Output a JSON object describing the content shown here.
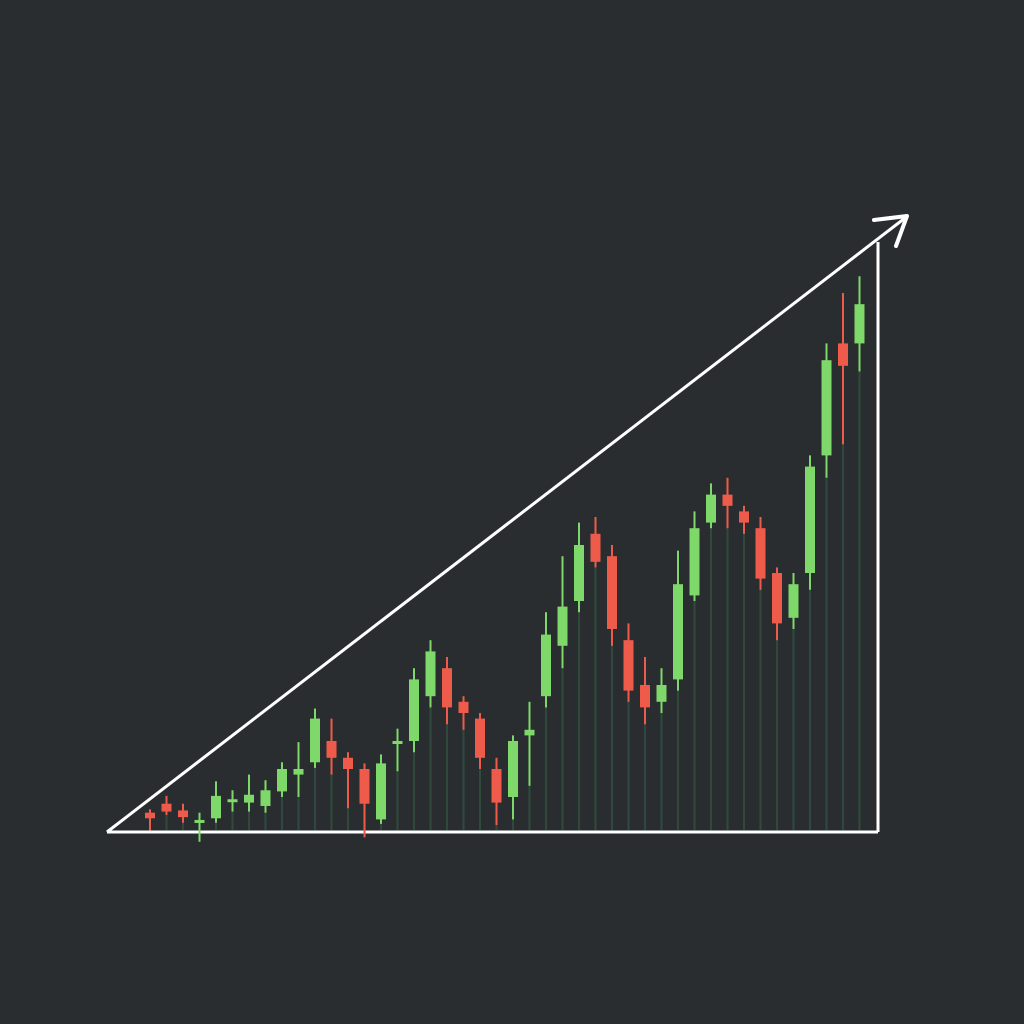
{
  "chart_data": {
    "type": "candlestick",
    "title": "",
    "xlabel": "",
    "ylabel": "",
    "axes_visible": false,
    "grid": false,
    "legend": "none",
    "colors": {
      "background": "#2a2d2f",
      "up": "#7fd86a",
      "down": "#ee5b4b",
      "shadow": "#2f4a3c",
      "frame": "#ffffff"
    },
    "overlay": {
      "shape": "right-triangle-with-arrow",
      "description_icon": "up-trend-arrow-icon"
    },
    "ylim": [
      0,
      100
    ],
    "candles": [
      {
        "i": 1,
        "open": 2.2,
        "close": 1.2,
        "high": 2.8,
        "low": -1.0,
        "dir": "down"
      },
      {
        "i": 2,
        "open": 3.8,
        "close": 2.4,
        "high": 5.2,
        "low": 1.8,
        "dir": "down"
      },
      {
        "i": 3,
        "open": 2.6,
        "close": 1.4,
        "high": 3.8,
        "low": 0.4,
        "dir": "down"
      },
      {
        "i": 4,
        "open": 0.4,
        "close": 0.9,
        "high": 2.2,
        "low": -3.0,
        "dir": "up"
      },
      {
        "i": 5,
        "open": 1.2,
        "close": 5.2,
        "high": 7.8,
        "low": 0.4,
        "dir": "up"
      },
      {
        "i": 6,
        "open": 4.2,
        "close": 4.6,
        "high": 6.2,
        "low": 2.4,
        "dir": "up"
      },
      {
        "i": 7,
        "open": 4.0,
        "close": 5.4,
        "high": 9.0,
        "low": 2.4,
        "dir": "up"
      },
      {
        "i": 8,
        "open": 3.4,
        "close": 6.2,
        "high": 8.0,
        "low": 2.2,
        "dir": "up"
      },
      {
        "i": 9,
        "open": 6.0,
        "close": 10.0,
        "high": 11.2,
        "low": 5.0,
        "dir": "up"
      },
      {
        "i": 10,
        "open": 9.0,
        "close": 10.0,
        "high": 14.8,
        "low": 5.0,
        "dir": "up"
      },
      {
        "i": 11,
        "open": 11.2,
        "close": 19.0,
        "high": 20.8,
        "low": 10.2,
        "dir": "up"
      },
      {
        "i": 12,
        "open": 15.0,
        "close": 12.0,
        "high": 19.0,
        "low": 9.0,
        "dir": "down"
      },
      {
        "i": 13,
        "open": 12.0,
        "close": 10.0,
        "high": 13.0,
        "low": 3.0,
        "dir": "down"
      },
      {
        "i": 14,
        "open": 10.0,
        "close": 3.8,
        "high": 11.0,
        "low": -2.2,
        "dir": "down"
      },
      {
        "i": 15,
        "open": 1.0,
        "close": 11.0,
        "high": 12.6,
        "low": 0.2,
        "dir": "up"
      },
      {
        "i": 16,
        "open": 15.0,
        "close": 15.0,
        "high": 17.2,
        "low": 9.6,
        "dir": "up"
      },
      {
        "i": 17,
        "open": 15.0,
        "close": 26.0,
        "high": 28.0,
        "low": 13.0,
        "dir": "up"
      },
      {
        "i": 18,
        "open": 23.0,
        "close": 31.0,
        "high": 33.0,
        "low": 21.0,
        "dir": "up"
      },
      {
        "i": 19,
        "open": 28.0,
        "close": 21.0,
        "high": 30.0,
        "low": 18.0,
        "dir": "down"
      },
      {
        "i": 20,
        "open": 22.0,
        "close": 20.0,
        "high": 23.0,
        "low": 17.0,
        "dir": "down"
      },
      {
        "i": 21,
        "open": 19.0,
        "close": 12.0,
        "high": 20.0,
        "low": 10.0,
        "dir": "down"
      },
      {
        "i": 22,
        "open": 10.0,
        "close": 4.0,
        "high": 12.0,
        "low": 0.0,
        "dir": "down"
      },
      {
        "i": 23,
        "open": 5.0,
        "close": 15.0,
        "high": 16.0,
        "low": 1.0,
        "dir": "up"
      },
      {
        "i": 24,
        "open": 16.0,
        "close": 17.0,
        "high": 22.0,
        "low": 7.0,
        "dir": "up"
      },
      {
        "i": 25,
        "open": 23.0,
        "close": 34.0,
        "high": 38.0,
        "low": 21.0,
        "dir": "up"
      },
      {
        "i": 26,
        "open": 32.0,
        "close": 39.0,
        "high": 48.0,
        "low": 28.0,
        "dir": "up"
      },
      {
        "i": 27,
        "open": 40.0,
        "close": 50.0,
        "high": 54.0,
        "low": 38.0,
        "dir": "up"
      },
      {
        "i": 28,
        "open": 52.0,
        "close": 47.0,
        "high": 55.0,
        "low": 46.0,
        "dir": "down"
      },
      {
        "i": 29,
        "open": 48.0,
        "close": 35.0,
        "high": 50.0,
        "low": 32.0,
        "dir": "down"
      },
      {
        "i": 30,
        "open": 33.0,
        "close": 24.0,
        "high": 36.0,
        "low": 22.0,
        "dir": "down"
      },
      {
        "i": 31,
        "open": 25.0,
        "close": 21.0,
        "high": 30.0,
        "low": 18.0,
        "dir": "down"
      },
      {
        "i": 32,
        "open": 22.0,
        "close": 25.0,
        "high": 28.0,
        "low": 20.0,
        "dir": "up"
      },
      {
        "i": 33,
        "open": 26.0,
        "close": 43.0,
        "high": 49.0,
        "low": 24.0,
        "dir": "up"
      },
      {
        "i": 34,
        "open": 41.0,
        "close": 53.0,
        "high": 56.0,
        "low": 40.0,
        "dir": "up"
      },
      {
        "i": 35,
        "open": 54.0,
        "close": 59.0,
        "high": 61.0,
        "low": 53.0,
        "dir": "up"
      },
      {
        "i": 36,
        "open": 59.0,
        "close": 57.0,
        "high": 62.0,
        "low": 53.0,
        "dir": "down"
      },
      {
        "i": 37,
        "open": 56.0,
        "close": 54.0,
        "high": 57.0,
        "low": 52.0,
        "dir": "down"
      },
      {
        "i": 38,
        "open": 53.0,
        "close": 44.0,
        "high": 55.0,
        "low": 42.0,
        "dir": "down"
      },
      {
        "i": 39,
        "open": 45.0,
        "close": 36.0,
        "high": 46.0,
        "low": 33.0,
        "dir": "down"
      },
      {
        "i": 40,
        "open": 37.0,
        "close": 43.0,
        "high": 45.0,
        "low": 35.0,
        "dir": "up"
      },
      {
        "i": 41,
        "open": 45.0,
        "close": 64.0,
        "high": 66.0,
        "low": 42.0,
        "dir": "up"
      },
      {
        "i": 42,
        "open": 66.0,
        "close": 83.0,
        "high": 86.0,
        "low": 62.0,
        "dir": "up"
      },
      {
        "i": 43,
        "open": 86.0,
        "close": 82.0,
        "high": 95.0,
        "low": 68.0,
        "dir": "down"
      },
      {
        "i": 44,
        "open": 86.0,
        "close": 93.0,
        "high": 98.0,
        "low": 81.0,
        "dir": "up"
      }
    ]
  }
}
